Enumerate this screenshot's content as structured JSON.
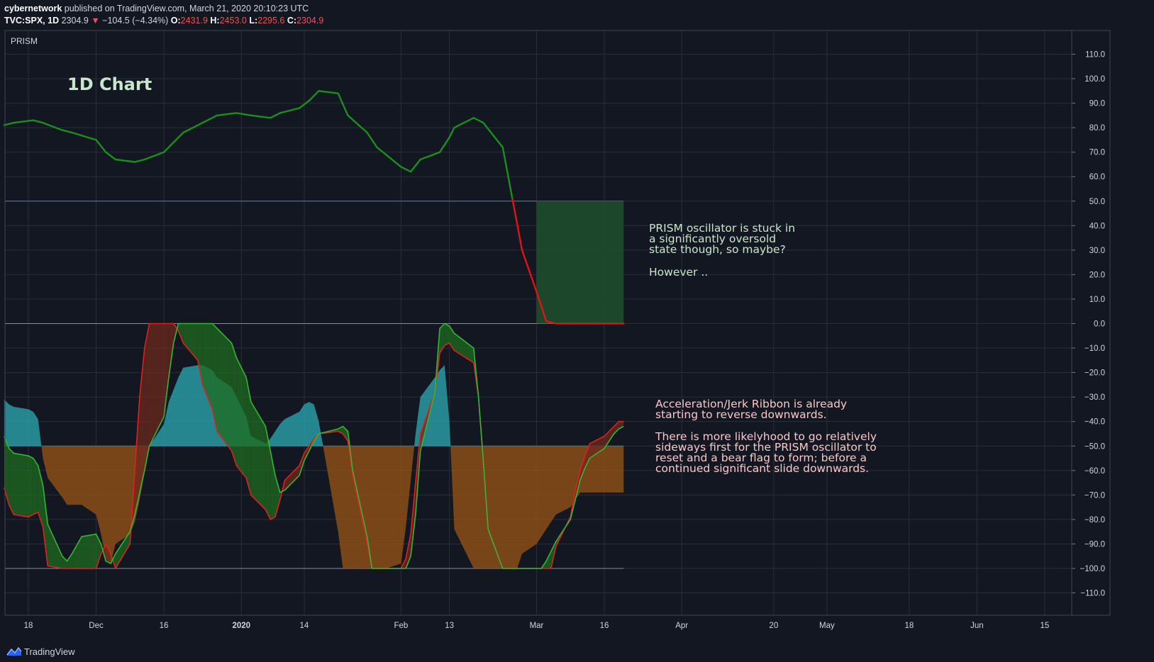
{
  "header": {
    "author": "cybernetwork",
    "published_text": "published on TradingView.com, March 21, 2020 20:10:23 UTC",
    "ticker": "TVC:SPX, 1D",
    "price": "2304.9",
    "change_arrow": "▼",
    "change": "−104.5 (−4.34%)",
    "open_label": "O:",
    "open": "2431.9",
    "high_label": "H:",
    "high": "2453.0",
    "low_label": "L:",
    "low": "2295.6",
    "close_label": "C:",
    "close": "2304.9"
  },
  "footer": {
    "brand": "TradingView"
  },
  "colors": {
    "background": "#131722",
    "grid": "#2a2e39",
    "axis_text": "#d1d4dc",
    "prism_up": "#1a8f1a",
    "prism_down": "#e01414",
    "level_line": "#2f8fa3",
    "oversold_box": "#1e4d2b",
    "cyan_fill": "#2a9aa3",
    "orange_fill": "#8a4d16",
    "ribbon_green": "#35b535",
    "ribbon_red": "#e02020"
  },
  "chart_data": {
    "type": "line",
    "indicator_name": "PRISM",
    "title": "1D Chart",
    "xlabel": "",
    "ylabel": "",
    "ylim": [
      -120,
      120
    ],
    "y_ticks": [
      110,
      100,
      90,
      80,
      70,
      60,
      50,
      40,
      30,
      20,
      10,
      0,
      -10,
      -20,
      -30,
      -40,
      -50,
      -60,
      -70,
      -80,
      -90,
      -100,
      -110
    ],
    "y_tick_labels": [
      "110.0",
      "100.0",
      "90.0",
      "80.0",
      "70.0",
      "60.0",
      "50.0",
      "40.0",
      "30.0",
      "20.0",
      "10.0",
      "0.0",
      "−10.0",
      "−20.0",
      "−30.0",
      "−40.0",
      "−50.0",
      "−60.0",
      "−70.0",
      "−80.0",
      "−90.0",
      "−100.0",
      "−110.0"
    ],
    "x_tick_labels": [
      "18",
      "Dec",
      "16",
      "2020",
      "14",
      "Feb",
      "13",
      "Mar",
      "16",
      "Apr",
      "20",
      "May",
      "18",
      "Jun",
      "15"
    ],
    "x_tick_dates": [
      "2019-11-18",
      "2019-12-02",
      "2019-12-16",
      "2020-01-01",
      "2020-01-14",
      "2020-02-03",
      "2020-02-13",
      "2020-03-02",
      "2020-03-16",
      "2020-04-01",
      "2020-04-20",
      "2020-05-01",
      "2020-05-18",
      "2020-06-01",
      "2020-06-15"
    ],
    "levels": [
      50,
      0,
      -50,
      -100
    ],
    "grid": true,
    "series": [
      {
        "name": "PRISM",
        "x": [
          "2019-11-13",
          "2019-11-15",
          "2019-11-19",
          "2019-11-21",
          "2019-11-25",
          "2019-11-27",
          "2019-12-02",
          "2019-12-04",
          "2019-12-06",
          "2019-12-10",
          "2019-12-12",
          "2019-12-16",
          "2019-12-18",
          "2019-12-20",
          "2019-12-24",
          "2019-12-27",
          "2019-12-31",
          "2020-01-03",
          "2020-01-07",
          "2020-01-09",
          "2020-01-13",
          "2020-01-15",
          "2020-01-17",
          "2020-01-21",
          "2020-01-23",
          "2020-01-27",
          "2020-01-29",
          "2020-02-03",
          "2020-02-05",
          "2020-02-07",
          "2020-02-11",
          "2020-02-13",
          "2020-02-14",
          "2020-02-18",
          "2020-02-20",
          "2020-02-24",
          "2020-02-26",
          "2020-02-28",
          "2020-03-02",
          "2020-03-04",
          "2020-03-06",
          "2020-03-10",
          "2020-03-12",
          "2020-03-16",
          "2020-03-18",
          "2020-03-20"
        ],
        "values": [
          81,
          82,
          83,
          82,
          79,
          78,
          75,
          70,
          67,
          66,
          67,
          70,
          74,
          78,
          82,
          85,
          86,
          85,
          84,
          86,
          88,
          91,
          95,
          94,
          85,
          78,
          72,
          64,
          62,
          67,
          70,
          76,
          80,
          84,
          82,
          72,
          51,
          30,
          13,
          1,
          0,
          0,
          0,
          0,
          0,
          0
        ]
      }
    ],
    "oversold_zone": {
      "x_start": "2020-03-02",
      "x_end": "2020-03-20",
      "y_low": 0,
      "y_high": 50
    },
    "ribbon": {
      "name": "Acceleration/Jerk Ribbon",
      "x": [
        "2019-11-13",
        "2019-11-14",
        "2019-11-15",
        "2019-11-18",
        "2019-11-19",
        "2019-11-20",
        "2019-11-21",
        "2019-11-22",
        "2019-11-25",
        "2019-11-26",
        "2019-11-27",
        "2019-11-29",
        "2019-12-02",
        "2019-12-03",
        "2019-12-04",
        "2019-12-05",
        "2019-12-06",
        "2019-12-09",
        "2019-12-10",
        "2019-12-11",
        "2019-12-12",
        "2019-12-13",
        "2019-12-16",
        "2019-12-17",
        "2019-12-18",
        "2019-12-19",
        "2019-12-20",
        "2019-12-23",
        "2019-12-24",
        "2019-12-26",
        "2019-12-27",
        "2019-12-30",
        "2019-12-31",
        "2020-01-02",
        "2020-01-03",
        "2020-01-06",
        "2020-01-07",
        "2020-01-08",
        "2020-01-09",
        "2020-01-10",
        "2020-01-13",
        "2020-01-14",
        "2020-01-15",
        "2020-01-16",
        "2020-01-17",
        "2020-01-21",
        "2020-01-22",
        "2020-01-23",
        "2020-01-24",
        "2020-01-27",
        "2020-01-28",
        "2020-01-29",
        "2020-01-30",
        "2020-01-31",
        "2020-02-03",
        "2020-02-04",
        "2020-02-05",
        "2020-02-06",
        "2020-02-07",
        "2020-02-10",
        "2020-02-11",
        "2020-02-12",
        "2020-02-13",
        "2020-02-14",
        "2020-02-18",
        "2020-02-19",
        "2020-02-20",
        "2020-02-21",
        "2020-02-24",
        "2020-02-25",
        "2020-02-26",
        "2020-02-27",
        "2020-02-28",
        "2020-03-02",
        "2020-03-03",
        "2020-03-04",
        "2020-03-05",
        "2020-03-06",
        "2020-03-09",
        "2020-03-10",
        "2020-03-11",
        "2020-03-12",
        "2020-03-13",
        "2020-03-16",
        "2020-03-17",
        "2020-03-18",
        "2020-03-19",
        "2020-03-20"
      ],
      "area": [
        -31,
        -33,
        -34,
        -35,
        -36,
        -39,
        -55,
        -63,
        -71,
        -74,
        -74,
        -74,
        -78,
        -86,
        -96,
        -98,
        -90,
        -86,
        -81,
        -72,
        -61,
        -50,
        -41,
        -32,
        -27,
        -22,
        -18,
        -17,
        -17,
        -19,
        -22,
        -26,
        -30,
        -38,
        -46,
        -49,
        -47,
        -44,
        -41,
        -39,
        -36,
        -33,
        -32,
        -33,
        -40,
        -85,
        -100,
        -100,
        -100,
        -100,
        -100,
        -100,
        -100,
        -100,
        -98,
        -83,
        -64,
        -45,
        -30,
        -22,
        -19,
        -17,
        -40,
        -84,
        -100,
        -100,
        -100,
        -100,
        -100,
        -100,
        -100,
        -100,
        -94,
        -90,
        -87,
        -84,
        -81,
        -78,
        -75,
        -72,
        -69,
        -69,
        -69,
        -69,
        -69,
        -69,
        -69,
        -69
      ],
      "green": [
        -46,
        -51,
        -53,
        -54,
        -55,
        -58,
        -66,
        -82,
        -95,
        -97,
        -94,
        -87,
        -86,
        -90,
        -97,
        -98,
        -94,
        -85,
        -78,
        -69,
        -60,
        -50,
        -38,
        -22,
        -8,
        0,
        0,
        0,
        0,
        0,
        -2,
        -8,
        -14,
        -22,
        -32,
        -42,
        -52,
        -62,
        -69,
        -68,
        -62,
        -56,
        -52,
        -48,
        -45,
        -43,
        -42,
        -44,
        -60,
        -87,
        -100,
        -100,
        -100,
        -100,
        -100,
        -100,
        -95,
        -78,
        -52,
        -28,
        -2,
        0,
        -1,
        -4,
        -10,
        -30,
        -56,
        -84,
        -100,
        -100,
        -100,
        -100,
        -100,
        -100,
        -100,
        -97,
        -93,
        -89,
        -80,
        -72,
        -64,
        -59,
        -55,
        -51,
        -48,
        -45,
        -43,
        -42
      ],
      "red": [
        -67,
        -74,
        -78,
        -79,
        -78,
        -77,
        -83,
        -99,
        -100,
        -100,
        -100,
        -100,
        -100,
        -94,
        -90,
        -94,
        -100,
        -90,
        -60,
        -30,
        -10,
        0,
        0,
        0,
        0,
        -3,
        -8,
        -15,
        -25,
        -35,
        -44,
        -52,
        -58,
        -63,
        -70,
        -76,
        -80,
        -79,
        -72,
        -64,
        -58,
        -53,
        -50,
        -47,
        -45,
        -44,
        -45,
        -48,
        -62,
        -90,
        -100,
        -100,
        -100,
        -100,
        -100,
        -96,
        -86,
        -65,
        -45,
        -28,
        -12,
        -9,
        -8,
        -11,
        -16,
        -30,
        -56,
        -84,
        -100,
        -100,
        -100,
        -100,
        -100,
        -100,
        -100,
        -100,
        -100,
        -91,
        -79,
        -68,
        -60,
        -54,
        -49,
        -46,
        -44,
        -42,
        -40,
        -40
      ]
    },
    "annotations": [
      "PRISM oscillator is stuck in",
      "a significantly oversold",
      "state though, so maybe?",
      "However ..",
      "Acceleration/Jerk Ribbon is already",
      "starting to reverse downwards.",
      "There is more likelyhood to go relatively",
      "sideways first for the PRISM oscillator to",
      "reset and a bear flag to form; before a",
      "continued significant slide downwards."
    ]
  }
}
